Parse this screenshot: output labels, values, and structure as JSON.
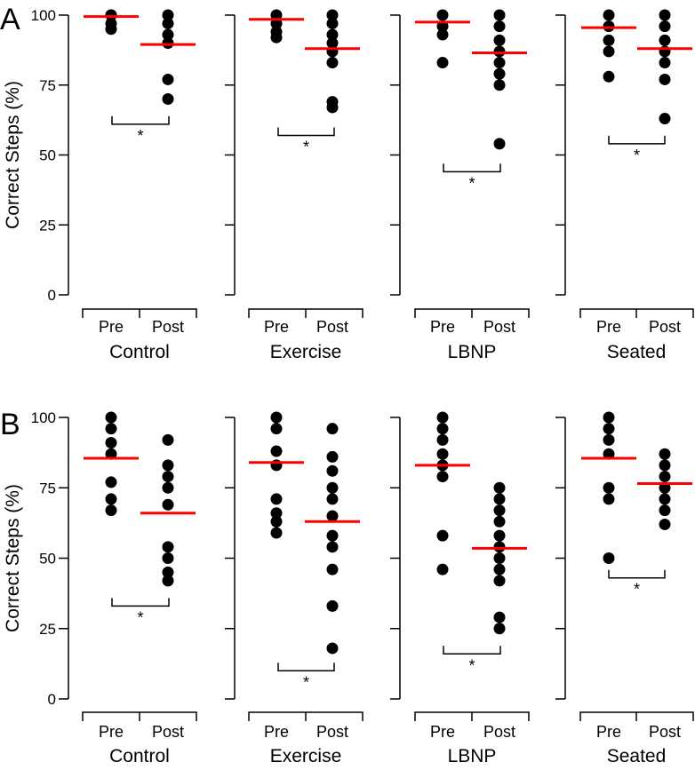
{
  "figure": {
    "panel_letters": [
      "A",
      "B"
    ]
  },
  "colors": {
    "points": "#000000",
    "mean_line": "#ff0000",
    "axes": "#000000"
  },
  "chart_data": [
    {
      "type": "scatter",
      "panel": "A",
      "ylabel": "Correct Steps (%)",
      "ylim": [
        0,
        100
      ],
      "yticks": [
        0,
        25,
        50,
        75,
        100
      ],
      "ytick_labels": [
        "0",
        "25",
        "50",
        "75",
        "100"
      ],
      "group_labels": [
        "Pre",
        "Post"
      ],
      "significance_marker": "*",
      "conditions": [
        {
          "name": "Control",
          "pre": [
            100,
            100,
            97,
            95
          ],
          "post": [
            100,
            97,
            93,
            90,
            77,
            70
          ],
          "pre_mean": 99.5,
          "post_mean": 89.5,
          "bracket_y": 61
        },
        {
          "name": "Exercise",
          "pre": [
            100,
            97,
            94,
            92
          ],
          "post": [
            100,
            97,
            93,
            90,
            87,
            83,
            69,
            67
          ],
          "pre_mean": 98.5,
          "post_mean": 88,
          "bracket_y": 57
        },
        {
          "name": "LBNP",
          "pre": [
            100,
            96,
            93,
            83
          ],
          "post": [
            100,
            96,
            91,
            87,
            83,
            79,
            75,
            54
          ],
          "pre_mean": 97.5,
          "post_mean": 86.5,
          "bracket_y": 44
        },
        {
          "name": "Seated",
          "pre": [
            100,
            96,
            91,
            87,
            78
          ],
          "post": [
            100,
            96,
            91,
            87,
            83,
            77,
            63
          ],
          "pre_mean": 95.5,
          "post_mean": 88,
          "bracket_y": 54
        }
      ]
    },
    {
      "type": "scatter",
      "panel": "B",
      "ylabel": "Correct Steps (%)",
      "ylim": [
        0,
        100
      ],
      "yticks": [
        0,
        25,
        50,
        75,
        100
      ],
      "ytick_labels": [
        "0",
        "25",
        "50",
        "75",
        "100"
      ],
      "group_labels": [
        "Pre",
        "Post"
      ],
      "significance_marker": "*",
      "conditions": [
        {
          "name": "Control",
          "pre": [
            100,
            96,
            91,
            87,
            77,
            71,
            67
          ],
          "post": [
            92,
            83,
            79,
            75,
            69,
            54,
            50,
            45,
            42
          ],
          "pre_mean": 85.5,
          "post_mean": 66,
          "bracket_y": 33
        },
        {
          "name": "Exercise",
          "pre": [
            100,
            96,
            88,
            83,
            71,
            66,
            63,
            59
          ],
          "post": [
            96,
            86,
            81,
            75,
            71,
            65,
            58,
            54,
            46,
            33,
            18
          ],
          "pre_mean": 84,
          "post_mean": 63,
          "bracket_y": 10
        },
        {
          "name": "LBNP",
          "pre": [
            100,
            96,
            92,
            87,
            83,
            79,
            58,
            46
          ],
          "post": [
            75,
            71,
            67,
            63,
            58,
            54,
            50,
            46,
            42,
            29,
            25
          ],
          "pre_mean": 83,
          "post_mean": 53.5,
          "bracket_y": 16
        },
        {
          "name": "Seated",
          "pre": [
            100,
            96,
            92,
            87,
            75,
            71,
            50
          ],
          "post": [
            87,
            83,
            79,
            75,
            71,
            67,
            62
          ],
          "pre_mean": 85.5,
          "post_mean": 76.5,
          "bracket_y": 43
        }
      ]
    }
  ]
}
